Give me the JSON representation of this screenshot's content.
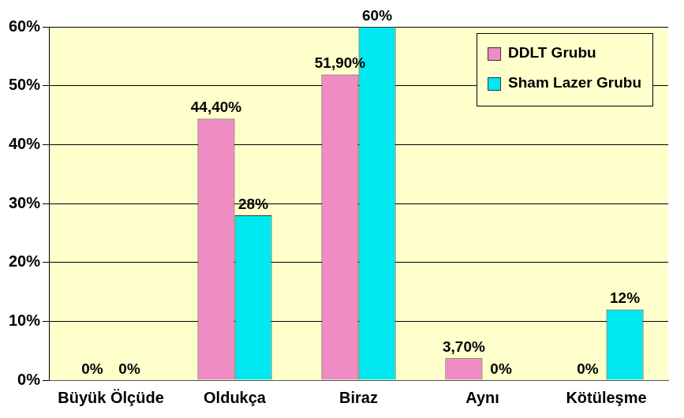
{
  "chart_data": {
    "type": "bar",
    "categories": [
      "Büyük Ölçüde",
      "Oldukça",
      "Biraz",
      "Aynı",
      "Kötüleşme"
    ],
    "series": [
      {
        "name": "DDLT Grubu",
        "color": "#F08CC4",
        "values": [
          0,
          44.4,
          51.9,
          3.7,
          0
        ],
        "value_labels": [
          "0%",
          "44,40%",
          "51,90%",
          "3,70%",
          "0%"
        ]
      },
      {
        "name": "Sham Lazer Grubu",
        "color": "#00E8F0",
        "values": [
          0,
          28,
          60,
          0,
          12
        ],
        "value_labels": [
          "0%",
          "28%",
          "60%",
          "0%",
          "12%"
        ]
      }
    ],
    "ylim": [
      0,
      60
    ],
    "yticks": [
      {
        "value": 0,
        "label": "0%"
      },
      {
        "value": 10,
        "label": "10%"
      },
      {
        "value": 20,
        "label": "20%"
      },
      {
        "value": 30,
        "label": "30%"
      },
      {
        "value": 40,
        "label": "40%"
      },
      {
        "value": 50,
        "label": "50%"
      },
      {
        "value": 60,
        "label": "60%"
      }
    ],
    "grid": true,
    "legend": "upper right",
    "data_labels": true
  }
}
